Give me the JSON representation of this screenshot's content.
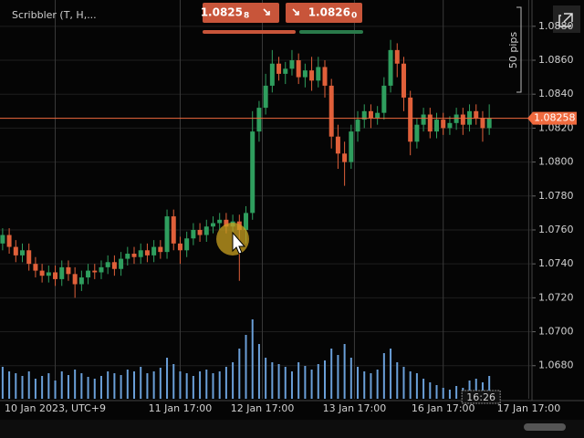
{
  "chart_data": {
    "type": "candlestick",
    "title": "Scribbler (T, H,...",
    "open": [
      1.0752,
      1.0757,
      1.075,
      1.0745,
      1.0748,
      1.074,
      1.0736,
      1.0733,
      1.0735,
      1.0731,
      1.0738,
      1.0734,
      1.0728,
      1.0732,
      1.0736,
      1.0735,
      1.0738,
      1.0741,
      1.0737,
      1.0743,
      1.0746,
      1.0744,
      1.0748,
      1.0745,
      1.075,
      1.0747,
      1.0768,
      1.0752,
      1.0748,
      1.0755,
      1.076,
      1.0757,
      1.0762,
      1.0764,
      1.0766,
      1.0762,
      1.0765,
      1.076,
      1.077,
      1.0818,
      1.0832,
      1.0845,
      1.0858,
      1.0852,
      1.0855,
      1.086,
      1.085,
      1.0854,
      1.0848,
      1.0856,
      1.0845,
      1.0815,
      1.0805,
      1.08,
      1.0818,
      1.0825,
      1.083,
      1.0826,
      1.0829,
      1.0845,
      1.0866,
      1.0858,
      1.0838,
      1.0812,
      1.0822,
      1.0828,
      1.0818,
      1.0825,
      1.082,
      1.0823,
      1.0828,
      1.0822,
      1.083,
      1.0826,
      1.082
    ],
    "high": [
      1.0761,
      1.0761,
      1.0754,
      1.0752,
      1.0752,
      1.0744,
      1.074,
      1.0739,
      1.0739,
      1.0742,
      1.0742,
      1.0738,
      1.0736,
      1.074,
      1.074,
      1.0742,
      1.0745,
      1.0745,
      1.0747,
      1.075,
      1.075,
      1.0752,
      1.0752,
      1.0754,
      1.0754,
      1.0772,
      1.0772,
      1.0756,
      1.0759,
      1.0764,
      1.0764,
      1.0766,
      1.0768,
      1.077,
      1.077,
      1.0769,
      1.0769,
      1.0774,
      1.083,
      1.0836,
      1.0852,
      1.0866,
      1.0862,
      1.0859,
      1.0866,
      1.0864,
      1.0858,
      1.0862,
      1.0862,
      1.086,
      1.0849,
      1.0822,
      1.0812,
      1.0822,
      1.083,
      1.0834,
      1.0834,
      1.0833,
      1.085,
      1.0872,
      1.087,
      1.0862,
      1.0842,
      1.0826,
      1.0832,
      1.0832,
      1.0829,
      1.0829,
      1.0827,
      1.0832,
      1.0832,
      1.0834,
      1.0834,
      1.083,
      1.0834
    ],
    "low": [
      1.0748,
      1.0746,
      1.0741,
      1.0741,
      1.0736,
      1.0732,
      1.0729,
      1.0729,
      1.0727,
      1.0727,
      1.073,
      1.072,
      1.0724,
      1.0728,
      1.0731,
      1.0731,
      1.0734,
      1.0733,
      1.0733,
      1.0739,
      1.074,
      1.074,
      1.0741,
      1.0741,
      1.0743,
      1.0743,
      1.0748,
      1.074,
      1.0744,
      1.0751,
      1.0753,
      1.0753,
      1.0758,
      1.076,
      1.0758,
      1.0758,
      1.073,
      1.0752,
      1.0766,
      1.0812,
      1.0828,
      1.0841,
      1.0848,
      1.0846,
      1.0851,
      1.0846,
      1.0844,
      1.0842,
      1.0844,
      1.0838,
      1.0808,
      1.0796,
      1.0786,
      1.0796,
      1.0812,
      1.082,
      1.082,
      1.0822,
      1.0825,
      1.0841,
      1.085,
      1.083,
      1.0804,
      1.0808,
      1.0818,
      1.0814,
      1.0814,
      1.0816,
      1.0816,
      1.0819,
      1.0816,
      1.0818,
      1.0822,
      1.0812,
      1.0816
    ],
    "close": [
      1.0757,
      1.075,
      1.0745,
      1.0748,
      1.074,
      1.0736,
      1.0733,
      1.0735,
      1.0731,
      1.0738,
      1.0734,
      1.0728,
      1.0732,
      1.0736,
      1.0735,
      1.0738,
      1.0741,
      1.0737,
      1.0743,
      1.0746,
      1.0744,
      1.0748,
      1.0745,
      1.075,
      1.0747,
      1.0768,
      1.0752,
      1.0748,
      1.0755,
      1.076,
      1.0757,
      1.0762,
      1.0764,
      1.0766,
      1.0762,
      1.0765,
      1.076,
      1.077,
      1.0818,
      1.0832,
      1.0845,
      1.0858,
      1.0852,
      1.0855,
      1.086,
      1.085,
      1.0854,
      1.0848,
      1.0856,
      1.0845,
      1.0815,
      1.0805,
      1.08,
      1.0818,
      1.0825,
      1.083,
      1.0826,
      1.0829,
      1.0845,
      1.0866,
      1.0858,
      1.0838,
      1.0812,
      1.0822,
      1.0828,
      1.0818,
      1.0825,
      1.082,
      1.0823,
      1.0828,
      1.0822,
      1.083,
      1.0826,
      1.082,
      1.08258
    ],
    "volume": [
      35,
      30,
      28,
      25,
      30,
      22,
      25,
      28,
      20,
      30,
      26,
      32,
      28,
      24,
      22,
      25,
      30,
      28,
      26,
      32,
      30,
      35,
      28,
      30,
      34,
      45,
      38,
      30,
      28,
      25,
      30,
      32,
      28,
      30,
      35,
      40,
      55,
      70,
      87,
      60,
      45,
      40,
      38,
      35,
      30,
      40,
      36,
      32,
      38,
      42,
      55,
      48,
      60,
      45,
      35,
      30,
      28,
      32,
      50,
      55,
      40,
      35,
      30,
      28,
      22,
      18,
      15,
      12,
      10,
      14,
      12,
      20,
      22,
      18,
      25
    ],
    "up_color": "#2f9e5e",
    "down_color": "#e0603a",
    "volume_color": "#6a9fd8",
    "price_line_color": "#f06a3e",
    "xlim": [
      -0.4,
      80.5
    ],
    "xticks": [
      {
        "value": 8,
        "label": "10 Jan 2023, UTC+9"
      },
      {
        "value": 27,
        "label": "11 Jan 17:00"
      },
      {
        "value": 39.5,
        "label": "12 Jan 17:00"
      },
      {
        "value": 53.5,
        "label": "13 Jan 17:00"
      },
      {
        "value": 67,
        "label": "16 Jan 17:00"
      },
      {
        "value": 80,
        "label": "17 Jan 17:00"
      }
    ],
    "ylim": [
      1.06605,
      1.08955
    ],
    "yticks": [
      {
        "value": 1.068,
        "label": "1.0680"
      },
      {
        "value": 1.07,
        "label": "1.0700"
      },
      {
        "value": 1.072,
        "label": "1.0720"
      },
      {
        "value": 1.074,
        "label": "1.0740"
      },
      {
        "value": 1.076,
        "label": "1.0760"
      },
      {
        "value": 1.078,
        "label": "1.0780"
      },
      {
        "value": 1.08,
        "label": "1.0800"
      },
      {
        "value": 1.082,
        "label": "1.0820"
      },
      {
        "value": 1.084,
        "label": "1.0840"
      },
      {
        "value": 1.086,
        "label": "1.0860"
      },
      {
        "value": 1.088,
        "label": "1.0880"
      }
    ],
    "y2lim": [
      0,
      100
    ],
    "grid": true,
    "cursor_time": "16:26",
    "pip_ruler": "50 pips"
  },
  "trade_buttons": {
    "sell_price": "1.0825",
    "sell_pip": "8",
    "buy_price": "1.0826",
    "buy_pip": "0"
  }
}
